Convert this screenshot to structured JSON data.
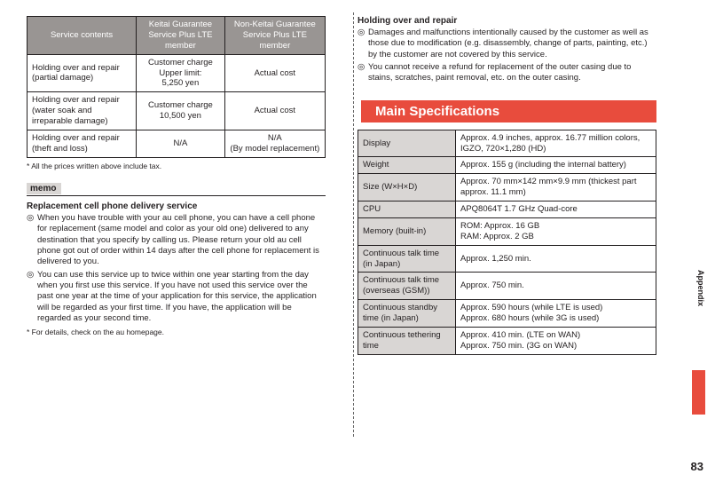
{
  "left": {
    "table1": {
      "headers": [
        "Service contents",
        "Keitai Guarantee Service Plus LTE member",
        "Non-Keitai Guarantee Service Plus LTE member"
      ],
      "rows": [
        [
          "Holding over and repair (partial damage)",
          "Customer charge\nUpper limit:\n5,250 yen",
          "Actual cost"
        ],
        [
          "Holding over and repair (water soak and irreparable damage)",
          "Customer charge\n10,500 yen",
          "Actual cost"
        ],
        [
          "Holding over and repair (theft and loss)",
          "N/A",
          "N/A\n(By model replacement)"
        ]
      ]
    },
    "footnote1": "*   All the prices written above include tax.",
    "memo": "memo",
    "subhead": "Replacement cell phone delivery service",
    "bullets": [
      "When you have trouble with your au cell phone, you can have a cell phone for replacement (same model and color as your old one) delivered to any destination that you specify by calling us. Please return your old au cell phone got out of order within 14 days after the cell phone for replacement is delivered to you.",
      "You can use this service up to twice within one year starting from the day when you first use this service. If you have not used this service over the past one year at the time of your application for this service, the application will be regarded as your first time. If you have, the application will be regarded as your second time."
    ],
    "footnote2": "*   For details, check on the au homepage."
  },
  "right": {
    "subhead": "Holding over and repair",
    "bullets": [
      "Damages and malfunctions intentionally caused by the customer as well as those due to modification (e.g. disassembly, change of parts, painting, etc.) by the customer are not covered by this service.",
      "You cannot receive a refund for replacement of the outer casing due to stains, scratches, paint removal, etc. on the outer casing."
    ],
    "section": "Main Specifications",
    "spec": {
      "rows": [
        [
          "Display",
          "Approx. 4.9 inches, approx. 16.77 million colors, IGZO, 720×1,280 (HD)"
        ],
        [
          "Weight",
          "Approx. 155 g (including the internal battery)"
        ],
        [
          "Size (W×H×D)",
          "Approx. 70 mm×142 mm×9.9 mm (thickest part approx. 11.1 mm)"
        ],
        [
          "CPU",
          "APQ8064T 1.7 GHz Quad-core"
        ],
        [
          "Memory (built-in)",
          "ROM: Approx. 16 GB\nRAM: Approx. 2 GB"
        ],
        [
          "Continuous talk time (in Japan)",
          "Approx. 1,250 min."
        ],
        [
          "Continuous talk time (overseas (GSM))",
          "Approx. 750 min."
        ],
        [
          "Continuous standby time (in Japan)",
          "Approx. 590 hours (while LTE is used)\nApprox. 680 hours (while 3G is used)"
        ],
        [
          "Continuous tethering time",
          "Approx. 410 min. (LTE on WAN)\nApprox. 750 min. (3G on WAN)"
        ]
      ]
    }
  },
  "side": "Appendix",
  "pagenum": "83"
}
